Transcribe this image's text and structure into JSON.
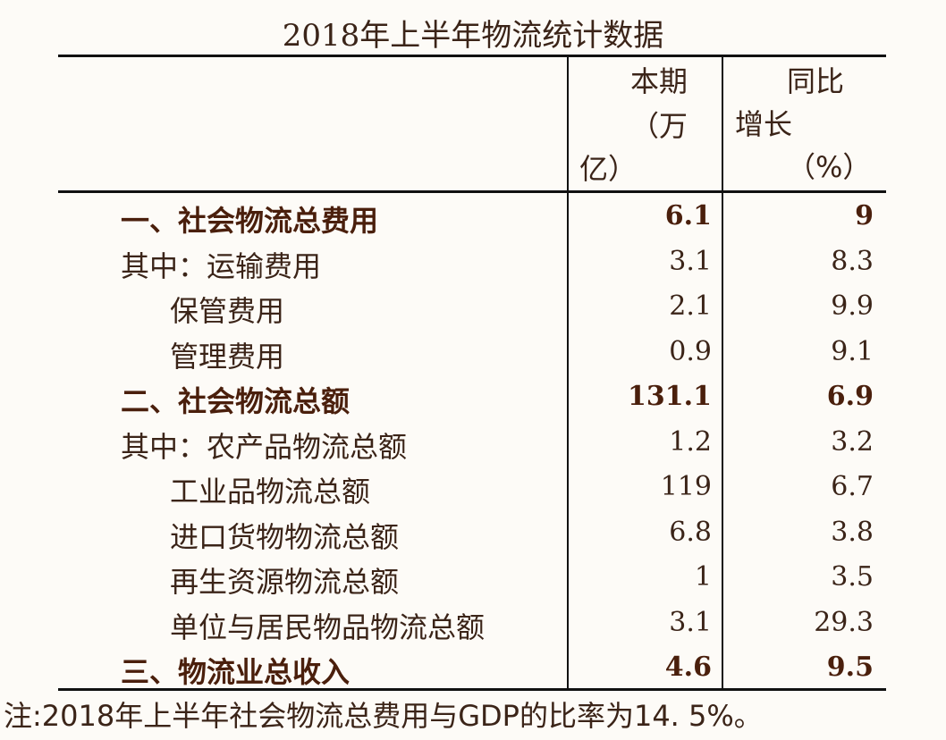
{
  "title": "2018年上半年物流统计数据",
  "headers": {
    "col1_line1": "本期",
    "col1_line2": "（万",
    "col1_line3": "亿）",
    "col2_line1": "同比",
    "col2_line2": "增长",
    "col2_line3": "（%）"
  },
  "rows": [
    {
      "label": "一、社会物流总费用",
      "current": "6.1",
      "yoy": "9",
      "bold": true,
      "indent": 1
    },
    {
      "label": "其中：运输费用",
      "current": "3.1",
      "yoy": "8.3",
      "bold": false,
      "indent": 0
    },
    {
      "label": "保管费用",
      "current": "2.1",
      "yoy": "9.9",
      "bold": false,
      "indent": 2
    },
    {
      "label": "管理费用",
      "current": "0.9",
      "yoy": "9.1",
      "bold": false,
      "indent": 2
    },
    {
      "label": "二、社会物流总额",
      "current": "131.1",
      "yoy": "6.9",
      "bold": true,
      "indent": 0
    },
    {
      "label": "其中：农产品物流总额",
      "current": "1.2",
      "yoy": "3.2",
      "bold": false,
      "indent": 0
    },
    {
      "label": "工业品物流总额",
      "current": "119",
      "yoy": "6.7",
      "bold": false,
      "indent": 2
    },
    {
      "label": "进口货物物流总额",
      "current": "6.8",
      "yoy": "3.8",
      "bold": false,
      "indent": 2
    },
    {
      "label": "再生资源物流总额",
      "current": "1",
      "yoy": "3.5",
      "bold": false,
      "indent": 2
    },
    {
      "label": "单位与居民物品物流总额",
      "current": "3.1",
      "yoy": "29.3",
      "bold": false,
      "indent": 2
    },
    {
      "label": "三、物流业总收入",
      "current": "4.6",
      "yoy": "9.5",
      "bold": true,
      "indent": 1
    }
  ],
  "note": "注:2018年上半年社会物流总费用与GDP的比率为14. 5%。"
}
